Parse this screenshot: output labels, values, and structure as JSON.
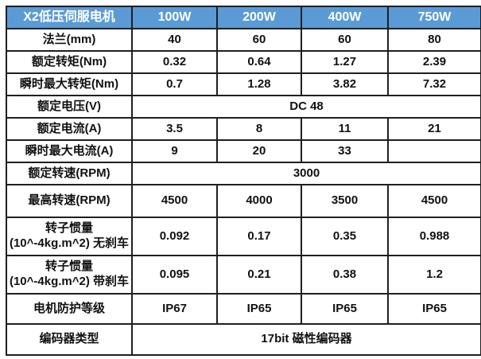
{
  "chart_data": {
    "type": "table",
    "title": "X2低压伺服电机",
    "columns": [
      "100W",
      "200W",
      "400W",
      "750W"
    ],
    "rows": [
      {
        "label": "法兰(mm)",
        "values": [
          "40",
          "60",
          "60",
          "80"
        ]
      },
      {
        "label": "额定转矩(Nm)",
        "values": [
          "0.32",
          "0.64",
          "1.27",
          "2.39"
        ]
      },
      {
        "label": "瞬时最大转矩(Nm)",
        "values": [
          "0.7",
          "1.28",
          "3.82",
          "7.32"
        ]
      },
      {
        "label": "额定电压(V)",
        "span": "DC 48"
      },
      {
        "label": "额定电流(A)",
        "values": [
          "3.5",
          "8",
          "11",
          "21"
        ]
      },
      {
        "label": "瞬时最大电流(A)",
        "values": [
          "9",
          "20",
          "33",
          ""
        ]
      },
      {
        "label": "额定转速(RPM)",
        "span": "3000"
      },
      {
        "label": "最高转速(RPM)",
        "values": [
          "4500",
          "4000",
          "3500",
          "4500"
        ]
      },
      {
        "label": "转子惯量(10^-4kg.m^2) 无刹车",
        "values": [
          "0.092",
          "0.17",
          "0.35",
          "0.988"
        ]
      },
      {
        "label": "转子惯量(10^-4kg.m^2) 带刹车",
        "values": [
          "0.095",
          "0.21",
          "0.38",
          "1.2"
        ]
      },
      {
        "label": "电机防护等级",
        "values": [
          "IP67",
          "IP65",
          "IP65",
          "IP65"
        ]
      },
      {
        "label": "编码器类型",
        "span": "17bit 磁性编码器"
      }
    ],
    "layout_hints": {
      "grid": true,
      "header_position": "top",
      "span_rows_full_width": [
        3,
        6,
        11
      ]
    }
  },
  "colors": {
    "header_bg": "#5B9BD5",
    "header_text": "#FFFFFF",
    "border": "#1F1F1F",
    "body_text": "#111111",
    "background": "#FFFFFF"
  }
}
